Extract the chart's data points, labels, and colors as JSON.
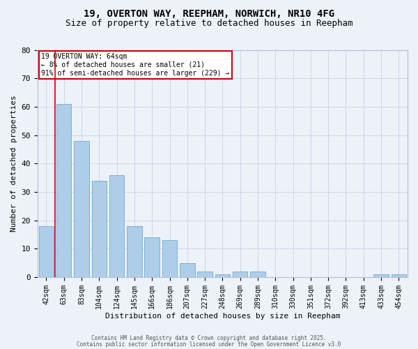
{
  "title1": "19, OVERTON WAY, REEPHAM, NORWICH, NR10 4FG",
  "title2": "Size of property relative to detached houses in Reepham",
  "xlabel": "Distribution of detached houses by size in Reepham",
  "ylabel": "Number of detached properties",
  "categories": [
    "42sqm",
    "63sqm",
    "83sqm",
    "104sqm",
    "124sqm",
    "145sqm",
    "166sqm",
    "186sqm",
    "207sqm",
    "227sqm",
    "248sqm",
    "269sqm",
    "289sqm",
    "310sqm",
    "330sqm",
    "351sqm",
    "372sqm",
    "392sqm",
    "413sqm",
    "433sqm",
    "454sqm"
  ],
  "values": [
    18,
    61,
    48,
    34,
    36,
    18,
    14,
    13,
    5,
    2,
    1,
    2,
    2,
    0,
    0,
    0,
    0,
    0,
    0,
    1,
    1
  ],
  "bar_color": "#aecde8",
  "bar_edge_color": "#6aaad4",
  "grid_color": "#ccd6e8",
  "background_color": "#edf2f9",
  "red_line_x": 0.5,
  "annotation_text": "19 OVERTON WAY: 64sqm\n← 8% of detached houses are smaller (21)\n91% of semi-detached houses are larger (229) →",
  "annotation_box_color": "#ffffff",
  "annotation_border_color": "#cc0000",
  "footer1": "Contains HM Land Registry data © Crown copyright and database right 2025.",
  "footer2": "Contains public sector information licensed under the Open Government Licence v3.0",
  "ylim": [
    0,
    80
  ],
  "yticks": [
    0,
    10,
    20,
    30,
    40,
    50,
    60,
    70,
    80
  ],
  "title1_fontsize": 10,
  "title2_fontsize": 9,
  "tick_fontsize": 7,
  "ylabel_fontsize": 8,
  "xlabel_fontsize": 8
}
